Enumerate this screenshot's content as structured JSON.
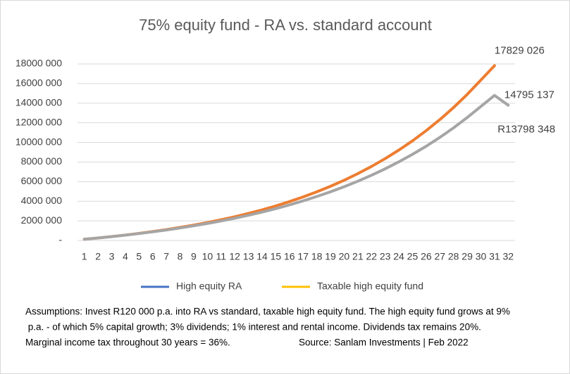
{
  "chart_data": {
    "type": "line",
    "title": "75% equity fund - RA vs. standard account",
    "categories": [
      "1",
      "2",
      "3",
      "4",
      "5",
      "6",
      "7",
      "8",
      "9",
      "10",
      "11",
      "12",
      "13",
      "14",
      "15",
      "16",
      "17",
      "18",
      "19",
      "20",
      "21",
      "22",
      "23",
      "24",
      "25",
      "26",
      "27",
      "28",
      "29",
      "30",
      "31",
      "32"
    ],
    "series": [
      {
        "name": "High equity RA",
        "color": "#ed7d31",
        "legend_color": "#4472c4",
        "values": [
          120000,
          250800,
          393400,
          548800,
          718200,
          902800,
          1104000,
          1323400,
          1562500,
          1823100,
          2107200,
          2416900,
          2754400,
          3122300,
          3523300,
          3960400,
          4436800,
          4956100,
          5522200,
          6139200,
          6811800,
          7544800,
          8343800,
          9214800,
          10164100,
          11198900,
          12326800,
          13556200,
          14896200,
          16356900,
          17829026,
          null
        ],
        "value_labels": [
          null,
          null,
          null,
          null,
          null,
          null,
          null,
          null,
          null,
          null,
          null,
          null,
          null,
          null,
          null,
          null,
          null,
          null,
          null,
          null,
          null,
          null,
          null,
          null,
          null,
          null,
          null,
          null,
          null,
          null,
          "17829 026",
          null
        ]
      },
      {
        "name": "Taxable high equity fund",
        "color": "#a5a5a5",
        "legend_color": "#ffc000",
        "values": [
          120000,
          249400,
          388900,
          539500,
          701900,
          877200,
          1066500,
          1270900,
          1491700,
          1730100,
          1987700,
          2266300,
          2567100,
          2892200,
          3243900,
          3623800,
          4034400,
          4478800,
          4958900,
          5478000,
          6040000,
          6647000,
          7303300,
          8014100,
          8781800,
          9612000,
          10511000,
          11482100,
          12532200,
          13669400,
          14795137,
          13798348
        ],
        "value_labels": [
          null,
          null,
          null,
          null,
          null,
          null,
          null,
          null,
          null,
          null,
          null,
          null,
          null,
          null,
          null,
          null,
          null,
          null,
          null,
          null,
          null,
          null,
          null,
          null,
          null,
          null,
          null,
          null,
          null,
          null,
          "14795 137",
          "R13798 348"
        ]
      }
    ],
    "ylim": [
      0,
      18000000
    ],
    "yticks": [
      {
        "value": 0,
        "label": "-"
      },
      {
        "value": 2000000,
        "label": "2000 000"
      },
      {
        "value": 4000000,
        "label": "4000 000"
      },
      {
        "value": 6000000,
        "label": "6000 000"
      },
      {
        "value": 8000000,
        "label": "8000 000"
      },
      {
        "value": 10000000,
        "label": "10000 000"
      },
      {
        "value": 12000000,
        "label": "12000 000"
      },
      {
        "value": 14000000,
        "label": "14000 000"
      },
      {
        "value": 16000000,
        "label": "16000 000"
      },
      {
        "value": 18000000,
        "label": "18000 000"
      }
    ],
    "grid": true,
    "legend": "bottom",
    "footnote": [
      "Assumptions: Invest R120 000 p.a. into RA vs standard, taxable high equity fund. The high equity fund grows at 9%",
      " p.a. - of which 5% capital growth; 3% dividends; 1% interest and rental income. Dividends tax remains 20%.",
      "Marginal income tax throughout 30 years = 36%."
    ],
    "source": "Source: Sanlam Investments | Feb 2022"
  }
}
